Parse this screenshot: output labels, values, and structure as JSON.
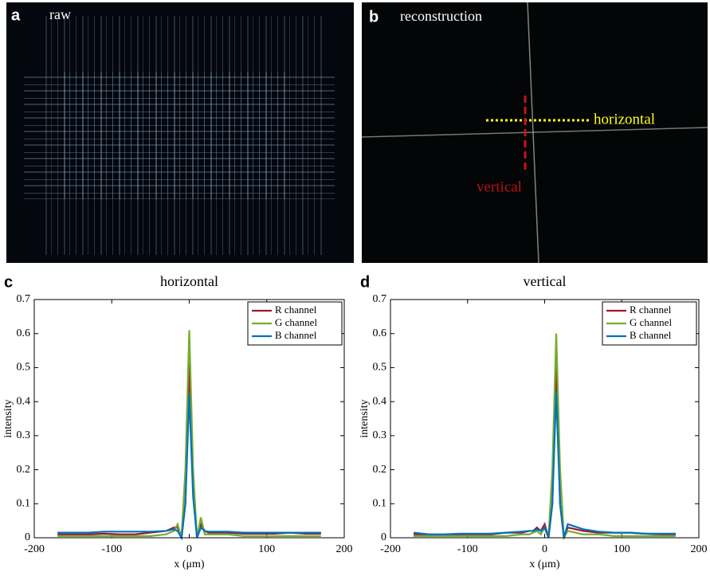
{
  "panels": {
    "a": {
      "letter": "a",
      "label": "raw"
    },
    "b": {
      "letter": "b",
      "label": "reconstruction",
      "horizontal": "horizontal",
      "vertical": "vertical"
    }
  },
  "chart_data": [
    {
      "type": "line",
      "letter": "c",
      "title": "horizontal",
      "xlabel": "x (μm)",
      "ylabel": "intensity",
      "x": [
        -170,
        -150,
        -130,
        -110,
        -90,
        -70,
        -50,
        -30,
        -20,
        -15,
        -10,
        -5,
        0,
        5,
        10,
        15,
        20,
        25,
        30,
        50,
        70,
        90,
        110,
        130,
        150,
        170
      ],
      "series": [
        {
          "name": "R channel",
          "color": "#a2142f",
          "values": [
            0.01,
            0.01,
            0.01,
            0.012,
            0.01,
            0.01,
            0.015,
            0.02,
            0.03,
            0.03,
            0.0,
            0.1,
            0.52,
            0.15,
            0.0,
            0.04,
            0.02,
            0.015,
            0.015,
            0.015,
            0.012,
            0.012,
            0.012,
            0.015,
            0.012,
            0.012
          ]
        },
        {
          "name": "G channel",
          "color": "#77ac30",
          "values": [
            0.005,
            0.005,
            0.005,
            0.005,
            0.005,
            0.005,
            0.005,
            0.01,
            0.02,
            0.04,
            0.0,
            0.2,
            0.61,
            0.2,
            0.0,
            0.06,
            0.01,
            0.01,
            0.01,
            0.01,
            0.005,
            0.005,
            0.005,
            0.005,
            0.005,
            0.005
          ]
        },
        {
          "name": "B channel",
          "color": "#0072bd",
          "values": [
            0.015,
            0.015,
            0.015,
            0.018,
            0.018,
            0.018,
            0.018,
            0.02,
            0.025,
            0.02,
            0.0,
            0.1,
            0.42,
            0.12,
            0.0,
            0.03,
            0.02,
            0.018,
            0.018,
            0.018,
            0.015,
            0.015,
            0.015,
            0.015,
            0.015,
            0.015
          ]
        }
      ],
      "xlim": [
        -200,
        200
      ],
      "xticks": [
        -200,
        -100,
        0,
        100,
        200
      ],
      "ylim": [
        0,
        0.7
      ],
      "yticks": [
        0,
        0.1,
        0.2,
        0.3,
        0.4,
        0.5,
        0.6,
        0.7
      ],
      "legend": "top-right"
    },
    {
      "type": "line",
      "letter": "d",
      "title": "vertical",
      "xlabel": "x (μm)",
      "ylabel": "intensity",
      "x": [
        -170,
        -150,
        -130,
        -110,
        -90,
        -70,
        -50,
        -30,
        -20,
        -15,
        -10,
        -5,
        0,
        5,
        10,
        15,
        20,
        25,
        30,
        50,
        70,
        90,
        110,
        130,
        150,
        170
      ],
      "series": [
        {
          "name": "R channel",
          "color": "#a2142f",
          "values": [
            0.01,
            0.01,
            0.005,
            0.01,
            0.01,
            0.01,
            0.015,
            0.015,
            0.02,
            0.02,
            0.03,
            0.02,
            0.04,
            0.0,
            0.1,
            0.52,
            0.1,
            0.0,
            0.03,
            0.02,
            0.015,
            0.015,
            0.015,
            0.012,
            0.01,
            0.01
          ]
        },
        {
          "name": "G channel",
          "color": "#77ac30",
          "values": [
            0.005,
            0.005,
            0.005,
            0.005,
            0.005,
            0.005,
            0.005,
            0.01,
            0.01,
            0.015,
            0.02,
            0.01,
            0.03,
            0.0,
            0.2,
            0.6,
            0.2,
            0.0,
            0.02,
            0.01,
            0.01,
            0.005,
            0.005,
            0.005,
            0.005,
            0.005
          ]
        },
        {
          "name": "B channel",
          "color": "#0072bd",
          "values": [
            0.015,
            0.01,
            0.01,
            0.012,
            0.012,
            0.012,
            0.015,
            0.018,
            0.02,
            0.02,
            0.025,
            0.02,
            0.03,
            0.0,
            0.1,
            0.43,
            0.1,
            0.0,
            0.04,
            0.025,
            0.018,
            0.015,
            0.015,
            0.012,
            0.012,
            0.012
          ]
        }
      ],
      "xlim": [
        -200,
        200
      ],
      "xticks": [
        -200,
        -100,
        0,
        100,
        200
      ],
      "ylim": [
        0,
        0.7
      ],
      "yticks": [
        0,
        0.1,
        0.2,
        0.3,
        0.4,
        0.5,
        0.6,
        0.7
      ],
      "legend": "top-right"
    }
  ]
}
